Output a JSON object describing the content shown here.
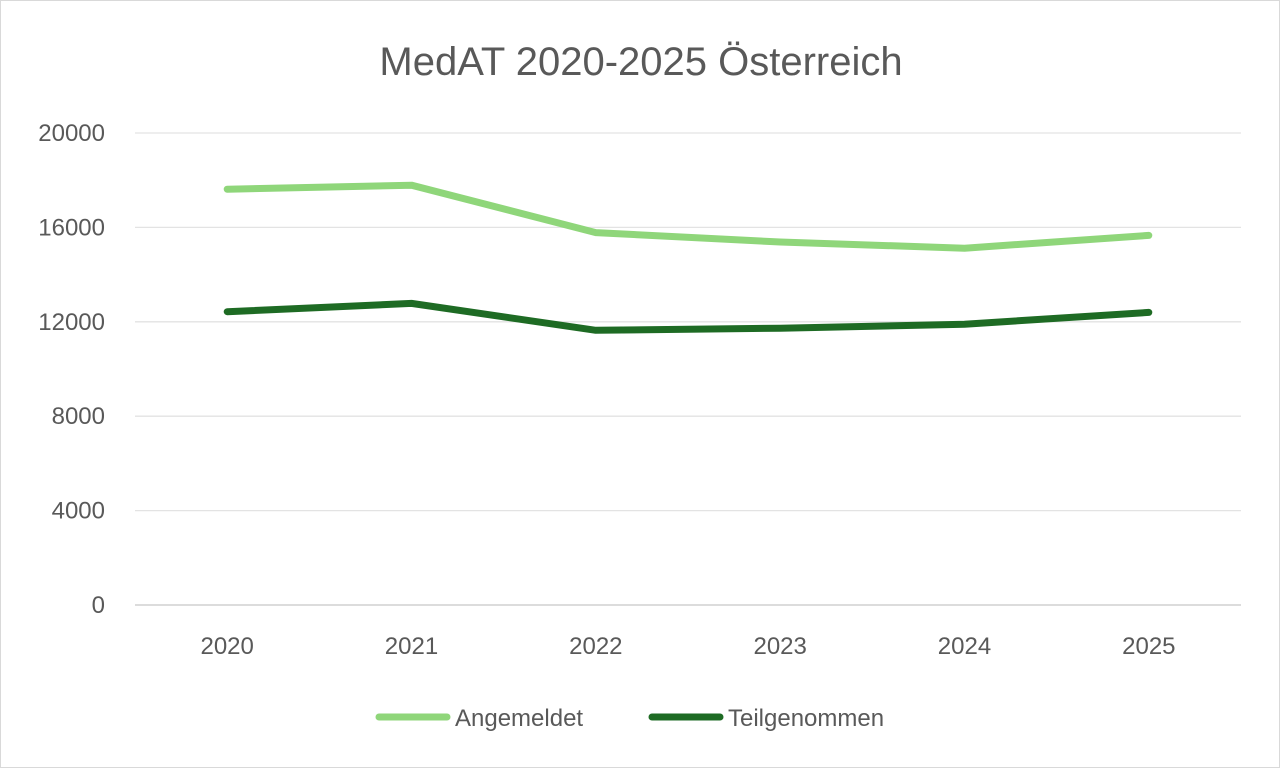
{
  "chart_data": {
    "type": "line",
    "title": "MedAT 2020-2025 Österreich",
    "xlabel": "",
    "ylabel": "",
    "categories": [
      "2020",
      "2021",
      "2022",
      "2023",
      "2024",
      "2025"
    ],
    "ylim": [
      0,
      20000
    ],
    "yticks": [
      0,
      4000,
      8000,
      12000,
      16000,
      20000
    ],
    "grid": true,
    "legend_position": "bottom",
    "series": [
      {
        "name": "Angemeldet",
        "color": "#8fd67a",
        "values": [
          17620,
          17790,
          15780,
          15380,
          15120,
          15660
        ]
      },
      {
        "name": "Teilgenommen",
        "color": "#1e6b24",
        "values": [
          12430,
          12780,
          11640,
          11730,
          11900,
          12400
        ]
      }
    ]
  }
}
